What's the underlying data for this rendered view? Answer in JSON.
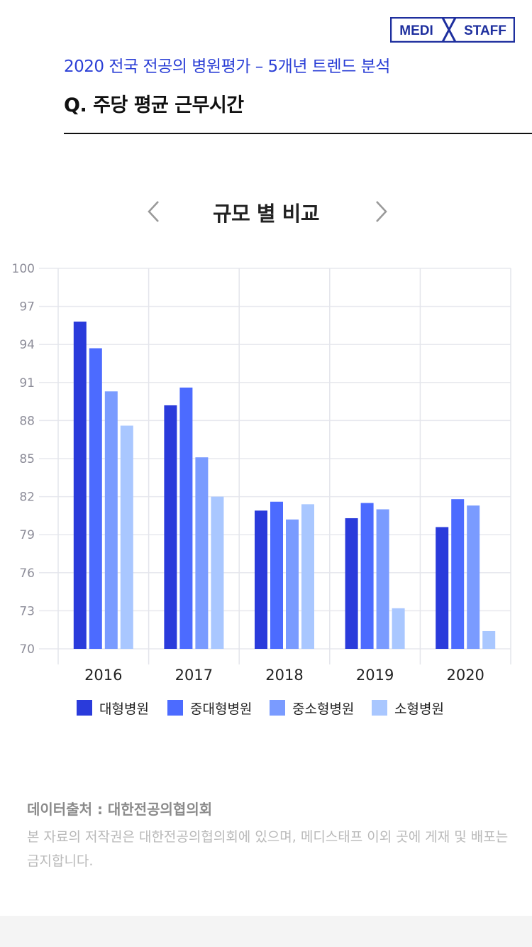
{
  "brand": {
    "logo_left": "MEDI",
    "logo_right": "STAFF"
  },
  "header": {
    "subtitle": "2020 전국 전공의 병원평가 – 5개년 트렌드 분석",
    "question": "Q. 주당 평균 근무시간"
  },
  "nav": {
    "prev_icon": "chevron-left-icon",
    "next_icon": "chevron-right-icon",
    "title": "규모 별 비교"
  },
  "colors": {
    "accent": "#2b3fd6",
    "series": [
      "#2a3bdb",
      "#4c6bff",
      "#7a9bff",
      "#a9c7ff"
    ]
  },
  "chart_data": {
    "type": "bar",
    "categories": [
      "2016",
      "2017",
      "2018",
      "2019",
      "2020"
    ],
    "series": [
      {
        "name": "대형병원",
        "values": [
          95.8,
          89.2,
          80.9,
          80.3,
          79.6
        ]
      },
      {
        "name": "중대형병원",
        "values": [
          93.7,
          90.6,
          81.6,
          81.5,
          81.8
        ]
      },
      {
        "name": "중소형병원",
        "values": [
          90.3,
          85.1,
          80.2,
          81.0,
          81.3
        ]
      },
      {
        "name": "소형병원",
        "values": [
          87.6,
          82.0,
          81.4,
          73.2,
          71.4
        ]
      }
    ],
    "ylim": [
      70,
      100
    ],
    "yticks": [
      "70",
      "73",
      "76",
      "79",
      "82",
      "85",
      "88",
      "91",
      "94",
      "97",
      "100"
    ],
    "grid": true,
    "legend_position": "bottom"
  },
  "footer": {
    "source": "데이터출처 : 대한전공의협의회",
    "notice": "본 자료의 저작권은 대한전공의협의회에 있으며, 메디스태프 이외 곳에 게재 및 배포는 금지합니다."
  }
}
